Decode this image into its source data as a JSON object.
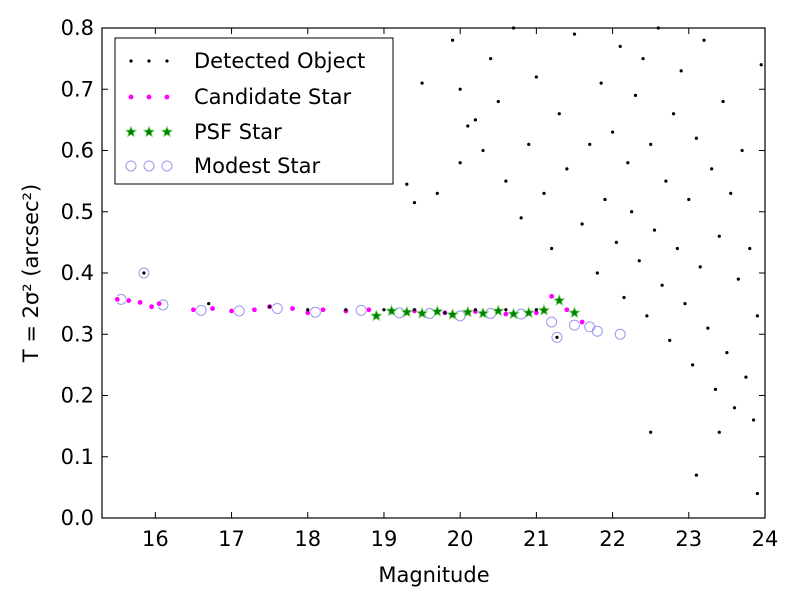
{
  "chart_data": {
    "type": "scatter",
    "title": "",
    "xlabel": "Magnitude",
    "ylabel": "T = 2σ² (arcsec²)",
    "xlim": [
      15.3,
      24.0
    ],
    "ylim": [
      0.0,
      0.8
    ],
    "xticks": [
      16,
      17,
      18,
      19,
      20,
      21,
      22,
      23,
      24
    ],
    "yticks": [
      0.0,
      0.1,
      0.2,
      0.3,
      0.4,
      0.5,
      0.6,
      0.7,
      0.8
    ],
    "xtick_labels": [
      "16",
      "17",
      "18",
      "19",
      "20",
      "21",
      "22",
      "23",
      "24"
    ],
    "ytick_labels": [
      "0.0",
      "0.1",
      "0.2",
      "0.3",
      "0.4",
      "0.5",
      "0.6",
      "0.7",
      "0.8"
    ],
    "grid": false,
    "legend_position": "top-left",
    "series": [
      {
        "name": "Detected Object",
        "marker": "dot",
        "color": "#000000",
        "points": [
          [
            15.85,
            0.4
          ],
          [
            16.7,
            0.35
          ],
          [
            17.5,
            0.345
          ],
          [
            18.0,
            0.34
          ],
          [
            18.5,
            0.34
          ],
          [
            19.0,
            0.34
          ],
          [
            19.4,
            0.34
          ],
          [
            19.8,
            0.335
          ],
          [
            20.2,
            0.34
          ],
          [
            20.6,
            0.34
          ],
          [
            21.0,
            0.34
          ],
          [
            21.27,
            0.295
          ],
          [
            19.3,
            0.545
          ],
          [
            19.4,
            0.515
          ],
          [
            19.5,
            0.71
          ],
          [
            19.7,
            0.53
          ],
          [
            19.9,
            0.78
          ],
          [
            20.0,
            0.58
          ],
          [
            20.0,
            0.7
          ],
          [
            20.1,
            0.64
          ],
          [
            20.2,
            0.65
          ],
          [
            20.3,
            0.6
          ],
          [
            20.4,
            0.75
          ],
          [
            20.5,
            0.68
          ],
          [
            20.6,
            0.55
          ],
          [
            20.7,
            0.8
          ],
          [
            20.8,
            0.49
          ],
          [
            20.9,
            0.61
          ],
          [
            21.0,
            0.72
          ],
          [
            21.1,
            0.53
          ],
          [
            21.2,
            0.44
          ],
          [
            21.3,
            0.66
          ],
          [
            21.4,
            0.57
          ],
          [
            21.5,
            0.79
          ],
          [
            21.6,
            0.48
          ],
          [
            21.7,
            0.61
          ],
          [
            21.8,
            0.4
          ],
          [
            21.85,
            0.71
          ],
          [
            21.9,
            0.52
          ],
          [
            22.0,
            0.63
          ],
          [
            22.05,
            0.45
          ],
          [
            22.1,
            0.77
          ],
          [
            22.15,
            0.36
          ],
          [
            22.2,
            0.58
          ],
          [
            22.25,
            0.5
          ],
          [
            22.3,
            0.69
          ],
          [
            22.35,
            0.42
          ],
          [
            22.4,
            0.75
          ],
          [
            22.45,
            0.33
          ],
          [
            22.5,
            0.61
          ],
          [
            22.55,
            0.47
          ],
          [
            22.6,
            0.8
          ],
          [
            22.65,
            0.38
          ],
          [
            22.7,
            0.55
          ],
          [
            22.75,
            0.29
          ],
          [
            22.8,
            0.66
          ],
          [
            22.85,
            0.44
          ],
          [
            22.9,
            0.73
          ],
          [
            22.95,
            0.35
          ],
          [
            23.0,
            0.52
          ],
          [
            23.05,
            0.25
          ],
          [
            23.1,
            0.62
          ],
          [
            23.15,
            0.41
          ],
          [
            23.2,
            0.78
          ],
          [
            23.25,
            0.31
          ],
          [
            23.3,
            0.57
          ],
          [
            23.35,
            0.21
          ],
          [
            23.4,
            0.46
          ],
          [
            23.45,
            0.68
          ],
          [
            23.5,
            0.27
          ],
          [
            23.55,
            0.53
          ],
          [
            23.6,
            0.18
          ],
          [
            23.65,
            0.39
          ],
          [
            23.7,
            0.6
          ],
          [
            23.75,
            0.23
          ],
          [
            23.8,
            0.44
          ],
          [
            23.85,
            0.16
          ],
          [
            23.9,
            0.33
          ],
          [
            23.95,
            0.74
          ],
          [
            23.9,
            0.04
          ],
          [
            23.4,
            0.14
          ],
          [
            22.5,
            0.14
          ],
          [
            23.1,
            0.07
          ]
        ]
      },
      {
        "name": "Candidate Star",
        "marker": "circle",
        "color": "#ff00ff",
        "points": [
          [
            15.5,
            0.357
          ],
          [
            15.65,
            0.355
          ],
          [
            15.8,
            0.352
          ],
          [
            15.95,
            0.345
          ],
          [
            16.05,
            0.35
          ],
          [
            16.5,
            0.34
          ],
          [
            16.75,
            0.342
          ],
          [
            17.0,
            0.338
          ],
          [
            17.3,
            0.34
          ],
          [
            17.5,
            0.345
          ],
          [
            17.8,
            0.342
          ],
          [
            18.0,
            0.335
          ],
          [
            18.2,
            0.34
          ],
          [
            18.5,
            0.338
          ],
          [
            18.8,
            0.34
          ],
          [
            19.1,
            0.336
          ],
          [
            19.4,
            0.338
          ],
          [
            19.8,
            0.335
          ],
          [
            20.2,
            0.337
          ],
          [
            20.6,
            0.333
          ],
          [
            21.0,
            0.335
          ],
          [
            21.2,
            0.362
          ],
          [
            21.4,
            0.34
          ],
          [
            21.6,
            0.32
          ]
        ]
      },
      {
        "name": "PSF Star",
        "marker": "star",
        "color": "#008000",
        "points": [
          [
            18.9,
            0.33
          ],
          [
            19.1,
            0.338
          ],
          [
            19.3,
            0.336
          ],
          [
            19.5,
            0.334
          ],
          [
            19.7,
            0.337
          ],
          [
            19.9,
            0.332
          ],
          [
            20.1,
            0.336
          ],
          [
            20.3,
            0.334
          ],
          [
            20.5,
            0.338
          ],
          [
            20.7,
            0.333
          ],
          [
            20.9,
            0.335
          ],
          [
            21.1,
            0.339
          ],
          [
            21.3,
            0.355
          ],
          [
            21.5,
            0.335
          ]
        ]
      },
      {
        "name": "Modest Star",
        "marker": "open-circle",
        "color": "#9999ee",
        "points": [
          [
            15.55,
            0.357
          ],
          [
            15.85,
            0.4
          ],
          [
            16.1,
            0.348
          ],
          [
            16.6,
            0.339
          ],
          [
            17.1,
            0.338
          ],
          [
            17.6,
            0.342
          ],
          [
            18.1,
            0.336
          ],
          [
            18.7,
            0.339
          ],
          [
            19.2,
            0.335
          ],
          [
            19.6,
            0.334
          ],
          [
            20.0,
            0.33
          ],
          [
            20.4,
            0.334
          ],
          [
            20.8,
            0.333
          ],
          [
            21.2,
            0.32
          ],
          [
            21.27,
            0.295
          ],
          [
            21.5,
            0.315
          ],
          [
            21.7,
            0.312
          ],
          [
            21.8,
            0.305
          ],
          [
            22.1,
            0.3
          ]
        ]
      }
    ]
  }
}
